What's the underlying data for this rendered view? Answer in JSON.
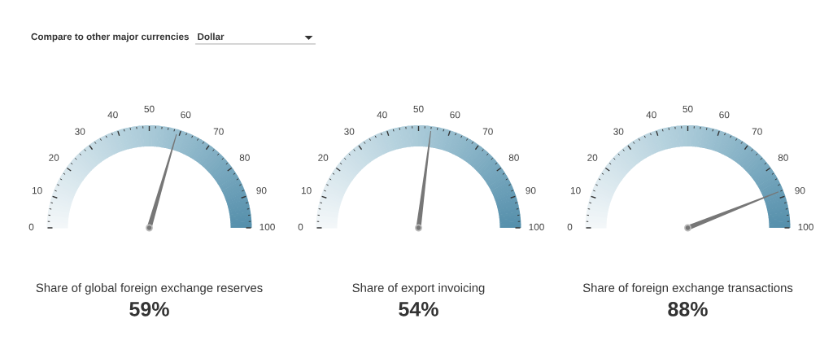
{
  "chart_data": [
    {
      "type": "other",
      "annotations": [
        "Compare to other major currencies",
        "Dollar"
      ]
    },
    {
      "type": "other",
      "title": "Share of global foreign exchange reserves",
      "values": [
        59
      ],
      "value_labels": [
        "59%"
      ],
      "color": "#777777",
      "annotations": [
        "0",
        "10",
        "20",
        "30",
        "40",
        "50",
        "60",
        "70",
        "80",
        "90",
        "100"
      ]
    },
    {
      "type": "other",
      "title": "Share of export invoicing",
      "values": [
        54
      ],
      "value_labels": [
        "54%"
      ],
      "color": "#777777",
      "annotations": [
        "0",
        "10",
        "20",
        "30",
        "40",
        "50",
        "60",
        "70",
        "80",
        "90",
        "100"
      ]
    },
    {
      "type": "other",
      "title": "Share of foreign exchange transactions",
      "values": [
        88
      ],
      "value_labels": [
        "88%"
      ],
      "color": "#777777",
      "annotations": [
        "0",
        "10",
        "20",
        "30",
        "40",
        "50",
        "60",
        "70",
        "80",
        "90",
        "100"
      ]
    }
  ]
}
